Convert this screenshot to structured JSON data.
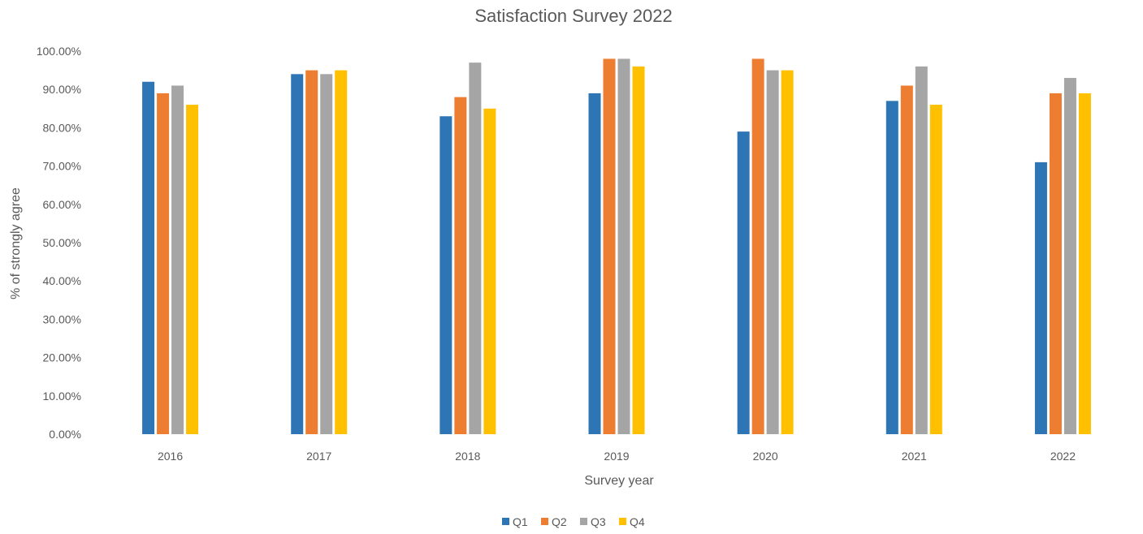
{
  "chart_data": {
    "type": "bar",
    "title": "Satisfaction Survey 2022",
    "xlabel": "Survey year",
    "ylabel": "% of strongly agree",
    "categories": [
      "2016",
      "2017",
      "2018",
      "2019",
      "2020",
      "2021",
      "2022"
    ],
    "y_ticks": [
      "0.00%",
      "10.00%",
      "20.00%",
      "30.00%",
      "40.00%",
      "50.00%",
      "60.00%",
      "70.00%",
      "80.00%",
      "90.00%",
      "100.00%"
    ],
    "ylim": [
      0,
      100
    ],
    "grid": false,
    "legend_position": "bottom",
    "series": [
      {
        "name": "Q1",
        "color": "#2E75B6",
        "values": [
          92,
          94,
          83,
          89,
          79,
          87,
          71
        ]
      },
      {
        "name": "Q2",
        "color": "#ED7D31",
        "values": [
          89,
          95,
          88,
          98,
          98,
          91,
          89
        ]
      },
      {
        "name": "Q3",
        "color": "#A5A5A5",
        "values": [
          91,
          94,
          97,
          98,
          95,
          96,
          93
        ]
      },
      {
        "name": "Q4",
        "color": "#FFC000",
        "values": [
          86,
          95,
          85,
          96,
          95,
          86,
          89
        ]
      }
    ]
  }
}
